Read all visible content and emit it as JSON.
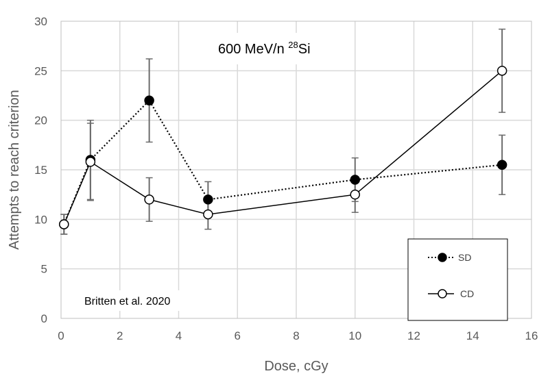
{
  "chart_data": {
    "type": "line",
    "title_main": "600 MeV/n ",
    "title_sup": "28",
    "title_tail": "Si",
    "annotation": "Britten et al. 2020",
    "xlabel": "Dose, cGy",
    "ylabel": "Attempts to reach criterion",
    "xlim": [
      0,
      16
    ],
    "ylim": [
      0,
      30
    ],
    "x_ticks": [
      0,
      2,
      4,
      6,
      8,
      10,
      12,
      14,
      16
    ],
    "y_ticks": [
      0,
      5,
      10,
      15,
      20,
      25,
      30
    ],
    "grid": true,
    "legend_position": "bottom-right",
    "series": [
      {
        "name": "SD",
        "style": "dotted",
        "marker": "filled-circle",
        "color": "#000000",
        "x": [
          0.1,
          1,
          3,
          5,
          10,
          15
        ],
        "y": [
          9.5,
          16.0,
          22.0,
          12.0,
          14.0,
          15.5
        ],
        "err": [
          1.0,
          4.0,
          4.2,
          1.8,
          2.2,
          3.0
        ]
      },
      {
        "name": "CD",
        "style": "solid",
        "marker": "open-circle",
        "color": "#000000",
        "x": [
          0.1,
          1,
          3,
          5,
          10,
          15
        ],
        "y": [
          9.5,
          15.8,
          12.0,
          10.5,
          12.5,
          25.0
        ],
        "err": [
          1.0,
          3.9,
          2.2,
          1.5,
          1.8,
          4.2
        ]
      }
    ]
  }
}
